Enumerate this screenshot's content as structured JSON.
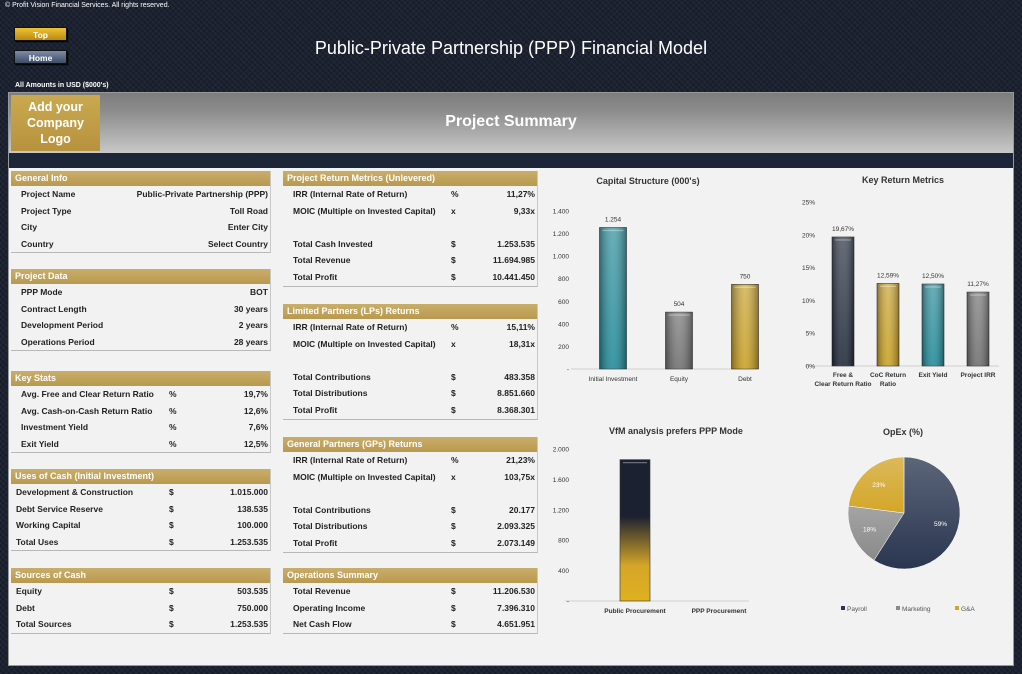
{
  "copyright": "© Profit Vision Financial Services. All rights reserved.",
  "nav": {
    "top": "Top",
    "home": "Home"
  },
  "title": "Public-Private Partnership (PPP) Financial Model",
  "amounts_note": "All Amounts in  USD ($000's)",
  "logo_text": "Add your Company Logo",
  "page_heading": "Project Summary",
  "colors": {
    "gold": "#c0a05a",
    "navy": "#1d2638",
    "teal": "#1e8a99",
    "gray": "#6e6e6e"
  },
  "sections": [
    {
      "id": "general-info",
      "title": "General Info",
      "rows": [
        {
          "label": "Project Name",
          "unit": "",
          "value": "Public-Private Partnership (PPP)"
        },
        {
          "label": "Project Type",
          "unit": "",
          "value": "Toll Road"
        },
        {
          "label": "City",
          "unit": "",
          "value": "Enter City"
        },
        {
          "label": "Country",
          "unit": "",
          "value": "Select Country"
        }
      ]
    },
    {
      "id": "project-data",
      "title": "Project Data",
      "rows": [
        {
          "label": "PPP Mode",
          "unit": "",
          "value": "BOT"
        },
        {
          "label": "Contract Length",
          "unit": "",
          "value": "30 years"
        },
        {
          "label": "Development Period",
          "unit": "",
          "value": "2 years"
        },
        {
          "label": "Operations Period",
          "unit": "",
          "value": "28 years"
        }
      ]
    },
    {
      "id": "key-stats",
      "title": "Key Stats",
      "rows": [
        {
          "label": "Avg. Free and Clear Return Ratio",
          "unit": "%",
          "value": "19,7%"
        },
        {
          "label": "Avg. Cash-on-Cash Return Ratio",
          "unit": "%",
          "value": "12,6%"
        },
        {
          "label": "Investment Yield",
          "unit": "%",
          "value": "7,6%"
        },
        {
          "label": "Exit Yield",
          "unit": "%",
          "value": "12,5%"
        }
      ]
    },
    {
      "id": "uses-of-cash",
      "title": "Uses of Cash (Initial Investment)",
      "rows": [
        {
          "label": "Development & Construction",
          "unit": "$",
          "value": "1.015.000"
        },
        {
          "label": "Debt Service Reserve",
          "unit": "$",
          "value": "138.535"
        },
        {
          "label": "Working Capital",
          "unit": "$",
          "value": "100.000"
        },
        {
          "label": "Total Uses",
          "unit": "$",
          "value": "1.253.535"
        }
      ]
    },
    {
      "id": "sources-of-cash",
      "title": "Sources of Cash",
      "rows": [
        {
          "label": "Equity",
          "unit": "$",
          "value": "503.535"
        },
        {
          "label": "Debt",
          "unit": "$",
          "value": "750.000"
        },
        {
          "label": "Total Sources",
          "unit": "$",
          "value": "1.253.535"
        }
      ]
    },
    {
      "id": "project-return-metrics",
      "title": "Project Return Metrics (Unlevered)",
      "rows": [
        {
          "label": "IRR (Internal Rate of Return)",
          "unit": "%",
          "value": "11,27%"
        },
        {
          "label": "MOIC (Multiple on Invested Capital)",
          "unit": "x",
          "value": "9,33x"
        },
        {
          "label": "Total Cash Invested",
          "unit": "$",
          "value": "1.253.535"
        },
        {
          "label": "Total Revenue",
          "unit": "$",
          "value": "11.694.985"
        },
        {
          "label": "Total Profit",
          "unit": "$",
          "value": "10.441.450"
        }
      ]
    },
    {
      "id": "lp-returns",
      "title": "Limited Partners (LPs) Returns",
      "rows": [
        {
          "label": "IRR (Internal Rate of Return)",
          "unit": "%",
          "value": "15,11%"
        },
        {
          "label": "MOIC (Multiple on Invested Capital)",
          "unit": "x",
          "value": "18,31x"
        },
        {
          "label": "Total Contributions",
          "unit": "$",
          "value": "483.358"
        },
        {
          "label": "Total Distributions",
          "unit": "$",
          "value": "8.851.660"
        },
        {
          "label": "Total Profit",
          "unit": "$",
          "value": "8.368.301"
        }
      ]
    },
    {
      "id": "gp-returns",
      "title": "General Partners (GPs) Returns",
      "rows": [
        {
          "label": "IRR (Internal Rate of Return)",
          "unit": "%",
          "value": "21,23%"
        },
        {
          "label": "MOIC (Multiple on Invested Capital)",
          "unit": "x",
          "value": "103,75x"
        },
        {
          "label": "Total Contributions",
          "unit": "$",
          "value": "20.177"
        },
        {
          "label": "Total Distributions",
          "unit": "$",
          "value": "2.093.325"
        },
        {
          "label": "Total Profit",
          "unit": "$",
          "value": "2.073.149"
        }
      ]
    },
    {
      "id": "operations-summary",
      "title": "Operations Summary",
      "rows": [
        {
          "label": "Total Revenue",
          "unit": "$",
          "value": "11.206.530"
        },
        {
          "label": "Operating Income",
          "unit": "$",
          "value": "7.396.310"
        },
        {
          "label": "Net Cash Flow",
          "unit": "$",
          "value": "4.651.951"
        }
      ]
    }
  ],
  "chart_data": [
    {
      "type": "bar",
      "title": "Capital Structure (000's)",
      "categories": [
        "Initial Investment",
        "Equity",
        "Debt"
      ],
      "values": [
        1254,
        504,
        750
      ],
      "data_labels": [
        "1.254",
        "504",
        "750"
      ],
      "ylim": [
        0,
        1400
      ],
      "yticks": [
        "-",
        "200",
        "400",
        "600",
        "800",
        "1.000",
        "1.200",
        "1.400"
      ],
      "colors": [
        "#1e8a99",
        "#6e6e6e",
        "#c9a020"
      ],
      "grid": false
    },
    {
      "type": "bar",
      "title": "Key Return Metrics",
      "categories": [
        "Free & Clear Return Ratio",
        "CoC Return Ratio",
        "Exit Yield",
        "Project IRR"
      ],
      "values": [
        19.67,
        12.59,
        12.5,
        11.27
      ],
      "data_labels": [
        "19,67%",
        "12,59%",
        "12,50%",
        "11,27%"
      ],
      "ylim": [
        0,
        25
      ],
      "yticks": [
        "0%",
        "5%",
        "10%",
        "15%",
        "20%",
        "25%"
      ],
      "colors": [
        "#1d2638",
        "#c9a020",
        "#1e8a99",
        "#6e6e6e"
      ],
      "grid": false
    },
    {
      "type": "bar",
      "title": "VfM analysis prefers PPP Mode",
      "categories": [
        "Public Procurement",
        "PPP Procurement"
      ],
      "values": [
        1860,
        0
      ],
      "ylim": [
        0,
        2000
      ],
      "yticks": [
        "-",
        "400",
        "800",
        "1.200",
        "1.600",
        "2.000"
      ],
      "colors": [
        "#e0b020",
        "#1d2638"
      ],
      "grid": false
    },
    {
      "type": "pie",
      "title": "OpEx (%)",
      "categories": [
        "Payroll",
        "Marketing",
        "G&A"
      ],
      "values": [
        59,
        18,
        23
      ],
      "data_labels": [
        "59%",
        "18%",
        "23%"
      ],
      "colors": [
        "#2a3650",
        "#8a8a8a",
        "#d4a628"
      ],
      "legend": "bottom"
    }
  ]
}
